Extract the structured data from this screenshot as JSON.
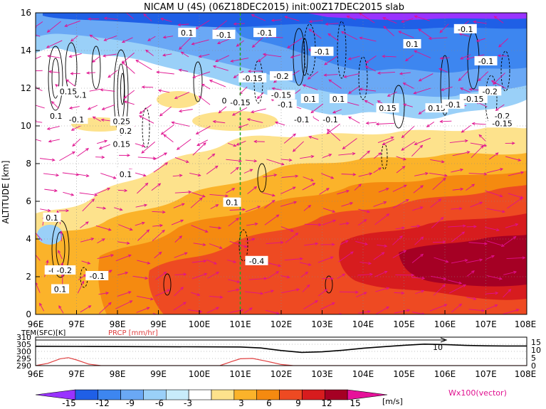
{
  "title": "NICAM U (4S) (06Z18DEC2015) init:00Z17DEC2015 slab",
  "chart_data": [
    {
      "type": "heatmap",
      "title": "NICAM U (4S) (06Z18DEC2015) init:00Z17DEC2015 slab",
      "ylabel": "ALTITUDE [km]",
      "x_ticks": [
        "96E",
        "97E",
        "98E",
        "99E",
        "100E",
        "101E",
        "102E",
        "103E",
        "104E",
        "105E",
        "106E",
        "107E",
        "108E"
      ],
      "y_ticks": [
        "0",
        "2",
        "4",
        "6",
        "8",
        "10",
        "12",
        "14",
        "16"
      ],
      "xlim": [
        96,
        108
      ],
      "ylim": [
        0,
        16
      ],
      "grid": true,
      "marker_line_lon": 101,
      "contour_labels": [
        {
          "text": "0.1",
          "lon": 97.1,
          "alt": 11.6
        },
        {
          "text": "0.15",
          "lon": 96.8,
          "alt": 11.8
        },
        {
          "text": "0.1",
          "lon": 96.5,
          "alt": 10.5
        },
        {
          "text": "-0.1",
          "lon": 97.0,
          "alt": 10.3
        },
        {
          "text": "0.25",
          "lon": 98.1,
          "alt": 10.2
        },
        {
          "text": "0.2",
          "lon": 98.2,
          "alt": 9.7
        },
        {
          "text": "0.15",
          "lon": 98.1,
          "alt": 9.0
        },
        {
          "text": "0.1",
          "lon": 98.2,
          "alt": 7.4
        },
        {
          "text": "0.1",
          "lon": 99.7,
          "alt": 14.9
        },
        {
          "text": "-0.1",
          "lon": 100.6,
          "alt": 14.8
        },
        {
          "text": "-0.1",
          "lon": 101.6,
          "alt": 14.9
        },
        {
          "text": "0.1",
          "lon": 100.7,
          "alt": 11.3
        },
        {
          "text": "-0.15",
          "lon": 101.0,
          "alt": 11.2
        },
        {
          "text": "-0.15",
          "lon": 101.3,
          "alt": 12.5
        },
        {
          "text": "-0.2",
          "lon": 102.0,
          "alt": 12.6
        },
        {
          "text": "-0.15",
          "lon": 102.0,
          "alt": 11.6
        },
        {
          "text": "-0.1",
          "lon": 102.1,
          "alt": 11.1
        },
        {
          "text": "-0.1",
          "lon": 103.0,
          "alt": 13.9
        },
        {
          "text": "0.1",
          "lon": 102.7,
          "alt": 11.4
        },
        {
          "text": "-0.1",
          "lon": 102.5,
          "alt": 10.3
        },
        {
          "text": "-0.1",
          "lon": 103.2,
          "alt": 10.3
        },
        {
          "text": "0.1",
          "lon": 103.4,
          "alt": 11.4
        },
        {
          "text": "0.15",
          "lon": 104.6,
          "alt": 10.9
        },
        {
          "text": "0.1",
          "lon": 105.2,
          "alt": 14.3
        },
        {
          "text": "0.15",
          "lon": 105.8,
          "alt": 10.9
        },
        {
          "text": "-0.1",
          "lon": 106.2,
          "alt": 11.1
        },
        {
          "text": "-0.1",
          "lon": 106.5,
          "alt": 15.1
        },
        {
          "text": "-0.1",
          "lon": 107.0,
          "alt": 13.4
        },
        {
          "text": "-0.2",
          "lon": 107.1,
          "alt": 11.8
        },
        {
          "text": "-0.15",
          "lon": 106.7,
          "alt": 11.4
        },
        {
          "text": "-0.2",
          "lon": 107.4,
          "alt": 10.5
        },
        {
          "text": "-0.15",
          "lon": 107.4,
          "alt": 10.1
        },
        {
          "text": "0.1",
          "lon": 100.8,
          "alt": 5.9
        },
        {
          "text": "-0.4",
          "lon": 101.4,
          "alt": 2.8
        },
        {
          "text": "-0.1",
          "lon": 97.5,
          "alt": 2.0
        },
        {
          "text": "0.1",
          "lon": 96.4,
          "alt": 5.1
        },
        {
          "text": "-0.1",
          "lon": 96.5,
          "alt": 2.3
        },
        {
          "text": "-0.2",
          "lon": 96.7,
          "alt": 2.3
        },
        {
          "text": "0.1",
          "lon": 96.6,
          "alt": 1.3
        }
      ]
    },
    {
      "type": "line",
      "left_label": "TEM(SFC)[K]",
      "right_label": "PRCP [mm/hr]",
      "x_ticks": [
        "96E",
        "97E",
        "98E",
        "99E",
        "100E",
        "101E",
        "102E",
        "103E",
        "104E",
        "105E",
        "106E",
        "107E",
        "108E"
      ],
      "left_ticks": [
        "310",
        "305",
        "300",
        "295",
        "290"
      ],
      "right_ticks": [
        "15",
        "10",
        "5",
        "0"
      ],
      "xlim": [
        96,
        108
      ],
      "ylim_left": [
        290,
        310
      ],
      "ylim_right": [
        0,
        15
      ],
      "annotation": "10",
      "series": [
        {
          "name": "TEM(SFC)[K]",
          "color": "#000000",
          "x": [
            96,
            97,
            98,
            99,
            100,
            101,
            101.5,
            102,
            102.5,
            103,
            103.5,
            104,
            104.5,
            105,
            105.5,
            106,
            106.5,
            107,
            107.5,
            108
          ],
          "values": [
            303.6,
            303.5,
            303.4,
            303.3,
            303.2,
            303.1,
            302.4,
            300.6,
            299.3,
            299.7,
            300.8,
            302.2,
            303.3,
            304.3,
            305.1,
            304.8,
            304.2,
            303.9,
            303.8,
            303.8
          ]
        },
        {
          "name": "PRCP [mm/hr]",
          "color": "#e04040",
          "x": [
            96,
            96.3,
            96.6,
            96.8,
            97.0,
            97.3,
            97.6,
            98,
            100.5,
            100.8,
            101.0,
            101.3,
            101.6,
            102.0,
            102.3,
            103,
            108
          ],
          "values": [
            0,
            1.2,
            3.6,
            4.2,
            3.0,
            0.8,
            0,
            0,
            0,
            2.2,
            3.6,
            3.8,
            2.5,
            0.6,
            0,
            0,
            0
          ]
        }
      ]
    }
  ],
  "colorbar": {
    "ticks": [
      "-15",
      "-12",
      "-9",
      "-6",
      "-3",
      "3",
      "6",
      "9",
      "12",
      "15"
    ],
    "unit": "[m/s]",
    "colors": [
      "#9933ff",
      "#1f5fe6",
      "#3d86f0",
      "#6aa8f5",
      "#9ad0f8",
      "#c8ecfa",
      "#ffffff",
      "#fde28c",
      "#fbb32a",
      "#f58a10",
      "#ee4a22",
      "#d71c1e",
      "#a50024",
      "#e6119a"
    ]
  },
  "vector_label": "Wx100(vector)",
  "colors": {
    "arrow": "#e0108f",
    "marker_line": "#22aa22",
    "temperature": "#000000",
    "precip": "#e04040"
  }
}
